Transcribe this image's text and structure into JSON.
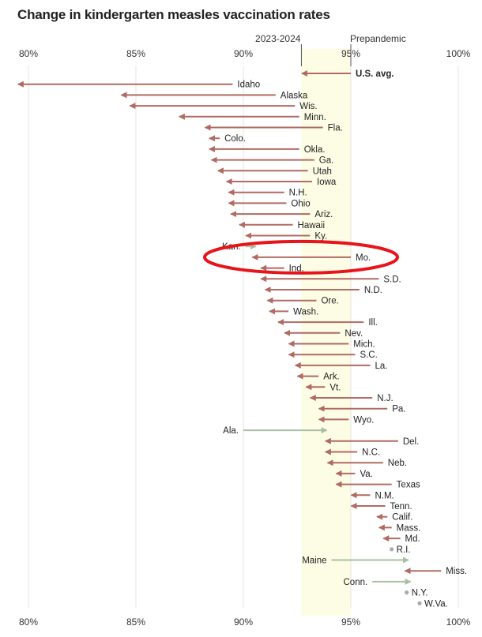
{
  "chart_data": {
    "type": "arrow",
    "title": "Change in kindergarten measles vaccination rates",
    "xlim": [
      80,
      100
    ],
    "x_ticks": [
      80,
      85,
      90,
      95,
      100
    ],
    "x_tick_labels": [
      "80%",
      "85%",
      "90%",
      "95%",
      "100%"
    ],
    "reference_lines": [
      {
        "label": "2023-2024",
        "x": 92.7
      },
      {
        "label": "Prepandemic",
        "x": 95.0
      }
    ],
    "colors": {
      "decrease": "#b06b62",
      "increase": "#a8bfa3",
      "nochange": "#aaaaaa",
      "band": "#fdfde6",
      "grid": "#e4e4e4"
    },
    "series": [
      {
        "state": "U.S. avg.",
        "prepandemic": 95.0,
        "current": 92.7
      },
      {
        "state": "Idaho",
        "prepandemic": 89.5,
        "current": 79.5
      },
      {
        "state": "Alaska",
        "prepandemic": 91.5,
        "current": 84.3
      },
      {
        "state": "Wis.",
        "prepandemic": 92.4,
        "current": 84.7
      },
      {
        "state": "Minn.",
        "prepandemic": 92.6,
        "current": 87.0
      },
      {
        "state": "Fla.",
        "prepandemic": 93.7,
        "current": 88.2
      },
      {
        "state": "Colo.",
        "prepandemic": 88.9,
        "current": 88.4
      },
      {
        "state": "Okla.",
        "prepandemic": 92.6,
        "current": 88.4
      },
      {
        "state": "Ga.",
        "prepandemic": 93.3,
        "current": 88.5
      },
      {
        "state": "Utah",
        "prepandemic": 93.0,
        "current": 88.8
      },
      {
        "state": "Iowa",
        "prepandemic": 93.2,
        "current": 89.2
      },
      {
        "state": "N.H.",
        "prepandemic": 91.9,
        "current": 89.3
      },
      {
        "state": "Ohio",
        "prepandemic": 92.0,
        "current": 89.3
      },
      {
        "state": "Ariz.",
        "prepandemic": 93.1,
        "current": 89.4
      },
      {
        "state": "Hawaii",
        "prepandemic": 92.3,
        "current": 89.8
      },
      {
        "state": "Ky.",
        "prepandemic": 93.1,
        "current": 90.1
      },
      {
        "state": "Kan.",
        "prepandemic": 90.1,
        "current": 90.6
      },
      {
        "state": "Mo.",
        "prepandemic": 95.0,
        "current": 90.4
      },
      {
        "state": "Ind.",
        "prepandemic": 91.9,
        "current": 90.8
      },
      {
        "state": "S.D.",
        "prepandemic": 96.3,
        "current": 90.8
      },
      {
        "state": "N.D.",
        "prepandemic": 95.4,
        "current": 91.0
      },
      {
        "state": "Ore.",
        "prepandemic": 93.4,
        "current": 91.1
      },
      {
        "state": "Wash.",
        "prepandemic": 92.1,
        "current": 91.2
      },
      {
        "state": "Ill.",
        "prepandemic": 95.6,
        "current": 91.6
      },
      {
        "state": "Nev.",
        "prepandemic": 94.5,
        "current": 91.9
      },
      {
        "state": "Mich.",
        "prepandemic": 94.9,
        "current": 92.1
      },
      {
        "state": "S.C.",
        "prepandemic": 95.2,
        "current": 92.1
      },
      {
        "state": "La.",
        "prepandemic": 95.9,
        "current": 92.4
      },
      {
        "state": "Ark.",
        "prepandemic": 93.5,
        "current": 92.5
      },
      {
        "state": "Vt.",
        "prepandemic": 93.8,
        "current": 92.9
      },
      {
        "state": "N.J.",
        "prepandemic": 96.0,
        "current": 93.1
      },
      {
        "state": "Pa.",
        "prepandemic": 96.7,
        "current": 93.5
      },
      {
        "state": "Wyo.",
        "prepandemic": 94.9,
        "current": 93.5
      },
      {
        "state": "Ala.",
        "prepandemic": 90.0,
        "current": 93.9
      },
      {
        "state": "Del.",
        "prepandemic": 97.2,
        "current": 93.8
      },
      {
        "state": "N.C.",
        "prepandemic": 95.3,
        "current": 93.8
      },
      {
        "state": "Neb.",
        "prepandemic": 96.5,
        "current": 93.9
      },
      {
        "state": "Va.",
        "prepandemic": 95.2,
        "current": 94.3
      },
      {
        "state": "Texas",
        "prepandemic": 96.9,
        "current": 94.3
      },
      {
        "state": "N.M.",
        "prepandemic": 95.9,
        "current": 95.0
      },
      {
        "state": "Tenn.",
        "prepandemic": 96.6,
        "current": 95.0
      },
      {
        "state": "Calif.",
        "prepandemic": 96.7,
        "current": 96.2
      },
      {
        "state": "Mass.",
        "prepandemic": 96.9,
        "current": 96.3
      },
      {
        "state": "Md.",
        "prepandemic": 97.3,
        "current": 96.5
      },
      {
        "state": "R.I.",
        "prepandemic": 96.9,
        "current": 96.9
      },
      {
        "state": "Maine",
        "prepandemic": 94.1,
        "current": 97.7
      },
      {
        "state": "Miss.",
        "prepandemic": 99.2,
        "current": 97.5
      },
      {
        "state": "Conn.",
        "prepandemic": 96.0,
        "current": 97.8
      },
      {
        "state": "N.Y.",
        "prepandemic": 97.6,
        "current": 97.6
      },
      {
        "state": "W.Va.",
        "prepandemic": 98.2,
        "current": 98.2
      }
    ]
  }
}
